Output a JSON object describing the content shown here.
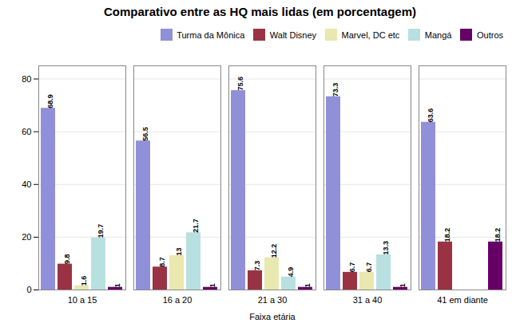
{
  "chart_data": {
    "type": "bar",
    "title": "Comparativo entre as HQ mais lidas (em porcentagem)",
    "xlabel": "Faixa etária",
    "categories": [
      "10 a 15",
      "16 a 20",
      "21 a 30",
      "31 a 40",
      "41 em diante"
    ],
    "series": [
      {
        "name": "Turma da Mônica",
        "color": "#9090d8",
        "values": [
          68.9,
          56.5,
          75.6,
          73.3,
          63.6
        ]
      },
      {
        "name": "Walt Disney",
        "color": "#993344",
        "values": [
          9.8,
          8.7,
          7.3,
          6.7,
          18.2
        ]
      },
      {
        "name": "Marvel, DC etc",
        "color": "#e8e8b0",
        "values": [
          1.6,
          13.0,
          12.2,
          6.7,
          0.0
        ]
      },
      {
        "name": "Mangá",
        "color": "#b8e0e0",
        "values": [
          19.7,
          21.7,
          4.9,
          13.3,
          0.0
        ]
      },
      {
        "name": "Outros",
        "color": "#660066",
        "values": [
          1.0,
          1.0,
          1.0,
          1.0,
          18.2
        ]
      }
    ],
    "ylim": [
      0,
      85
    ],
    "yticks": [
      0,
      20,
      40,
      60,
      80
    ],
    "grid": true,
    "legend": "upper right",
    "data_labels": true
  }
}
